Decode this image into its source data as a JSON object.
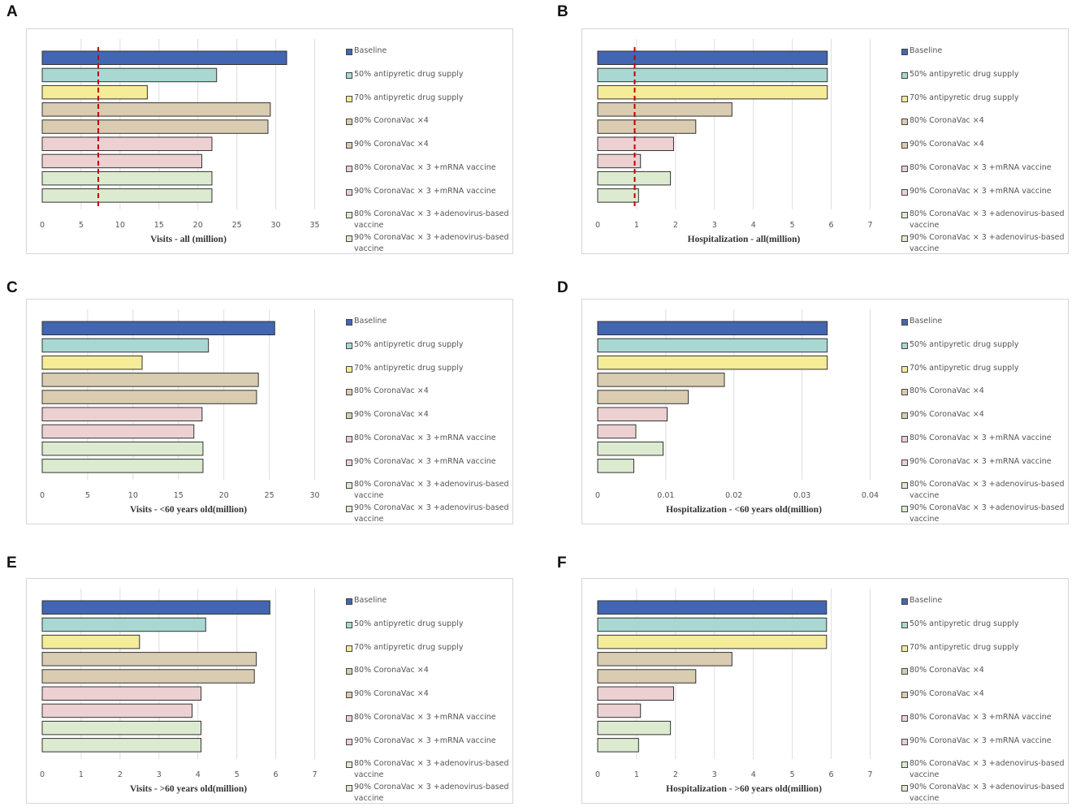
{
  "series_labels": [
    "Baseline",
    "50% antipyretic drug supply",
    "70% antipyretic drug supply",
    "80% CoronaVac ×4",
    "90% CoronaVac ×4",
    "80% CoronaVac × 3 +mRNA vaccine",
    "90% CoronaVac × 3 +mRNA vaccine",
    "80% CoronaVac × 3 +adenovirus-based vaccine",
    "90% CoronaVac × 3 +adenovirus-based vaccine"
  ],
  "colors": [
    "#4366b2",
    "#a9d8d2",
    "#f4ec97",
    "#d9ccb1",
    "#d9ccb1",
    "#ecd0d2",
    "#ecd0d2",
    "#dcebd0",
    "#dcebd0"
  ],
  "reference_line_color": "#c00000",
  "panels": [
    {
      "letter": "A",
      "xlabel": "Visits - all (million)"
    },
    {
      "letter": "B",
      "xlabel": "Hospitalization - all(million)"
    },
    {
      "letter": "C",
      "xlabel": "Visits - <60 years old(million)"
    },
    {
      "letter": "D",
      "xlabel": "Hospitalization - <60 years old(million)"
    },
    {
      "letter": "E",
      "xlabel": "Visits - >60 years old(million)"
    },
    {
      "letter": "F",
      "xlabel": "Hospitalization - >60 years old(million)"
    }
  ],
  "chart_data": [
    {
      "type": "bar",
      "orientation": "horizontal",
      "title": "A",
      "xlabel": "Visits - all (million)",
      "ticks": [
        0,
        5,
        10,
        15,
        20,
        25,
        30,
        35
      ],
      "xlim": [
        0,
        35
      ],
      "values": [
        31.4,
        22.4,
        13.5,
        29.3,
        29.0,
        21.8,
        20.5,
        21.8,
        21.8
      ],
      "reference_line": 7.2
    },
    {
      "type": "bar",
      "orientation": "horizontal",
      "title": "B",
      "xlabel": "Hospitalization - all(million)",
      "ticks": [
        0,
        1,
        2,
        3,
        4,
        5,
        6,
        7
      ],
      "xlim": [
        0,
        7
      ],
      "values": [
        5.9,
        5.9,
        5.9,
        3.45,
        2.52,
        1.95,
        1.1,
        1.87,
        1.05
      ],
      "reference_line": 0.95
    },
    {
      "type": "bar",
      "orientation": "horizontal",
      "title": "C",
      "xlabel": "Visits - <60 years old(million)",
      "ticks": [
        0,
        5,
        10,
        15,
        20,
        25,
        30
      ],
      "xlim": [
        0,
        30
      ],
      "values": [
        25.6,
        18.3,
        11.0,
        23.8,
        23.6,
        17.6,
        16.7,
        17.7,
        17.7
      ]
    },
    {
      "type": "bar",
      "orientation": "horizontal",
      "title": "D",
      "xlabel": "Hospitalization - <60 years old(million)",
      "ticks": [
        "0",
        "0.01",
        "0.02",
        "0.03",
        "0.04"
      ],
      "xlim": [
        0,
        0.04
      ],
      "values": [
        0.0337,
        0.0337,
        0.0337,
        0.0186,
        0.0133,
        0.0102,
        0.0056,
        0.0096,
        0.0053
      ]
    },
    {
      "type": "bar",
      "orientation": "horizontal",
      "title": "E",
      "xlabel": "Visits - >60 years old(million)",
      "ticks": [
        0,
        1,
        2,
        3,
        4,
        5,
        6,
        7
      ],
      "xlim": [
        0,
        7
      ],
      "values": [
        5.85,
        4.2,
        2.5,
        5.5,
        5.45,
        4.08,
        3.85,
        4.08,
        4.08
      ]
    },
    {
      "type": "bar",
      "orientation": "horizontal",
      "title": "F",
      "xlabel": "Hospitalization - >60 years old(million)",
      "ticks": [
        0,
        1,
        2,
        3,
        4,
        5,
        6,
        7
      ],
      "xlim": [
        0,
        7
      ],
      "values": [
        5.88,
        5.88,
        5.88,
        3.45,
        2.52,
        1.95,
        1.1,
        1.87,
        1.05
      ]
    }
  ]
}
